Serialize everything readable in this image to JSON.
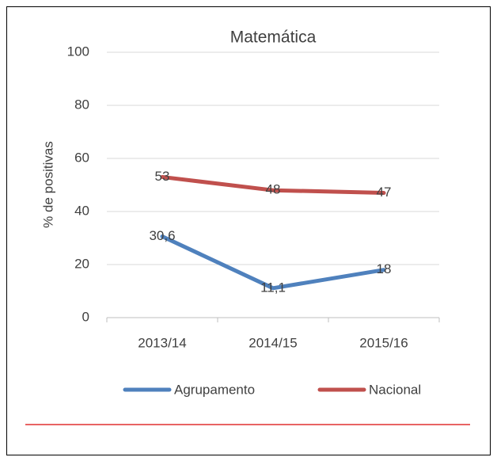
{
  "chart_data": {
    "type": "line",
    "title": "Matemática",
    "ylabel": "% de positivas",
    "categories": [
      "2013/14",
      "2014/15",
      "2015/16"
    ],
    "series": [
      {
        "name": "Agrupamento",
        "color": "#4f81bd",
        "values": [
          30.6,
          11.1,
          18
        ],
        "value_labels": [
          "30,6",
          "11,1",
          "18"
        ]
      },
      {
        "name": "Nacional",
        "color": "#c0504d",
        "values": [
          53,
          48,
          47
        ]
      }
    ],
    "ylim": [
      0,
      100
    ],
    "yticks": [
      0,
      20,
      40,
      60,
      80,
      100
    ],
    "grid": true,
    "legend": "bottom"
  }
}
